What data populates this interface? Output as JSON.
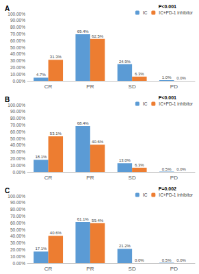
{
  "chart_data": [
    {
      "type": "bar",
      "title": "A",
      "annotations": [
        "P<0.001"
      ],
      "categories": [
        "CR",
        "PR",
        "SD",
        "PD"
      ],
      "series": [
        {
          "name": "IC",
          "color": "#5b9bd5",
          "values": [
            4.7,
            69.4,
            24.9,
            1.0
          ],
          "value_labels": [
            "4.7%",
            "69.4%",
            "24.9%",
            "1.0%"
          ]
        },
        {
          "name": "IC+PD-1 inhibitor",
          "color": "#ed7d31",
          "values": [
            31.3,
            62.5,
            6.3,
            0.0
          ],
          "value_labels": [
            "31.3%",
            "62.5%",
            "6.3%",
            "0.0%"
          ]
        }
      ],
      "ylim": [
        0,
        100
      ],
      "yticks": [
        {
          "value": 0,
          "label": "0.00%"
        },
        {
          "value": 10,
          "label": "10.00%"
        },
        {
          "value": 20,
          "label": "20.00%"
        },
        {
          "value": 30,
          "label": "30.00%"
        },
        {
          "value": 40,
          "label": "40.00%"
        },
        {
          "value": 50,
          "label": "50.00%"
        },
        {
          "value": 60,
          "label": "60.00%"
        },
        {
          "value": 70,
          "label": "70.00%"
        },
        {
          "value": 80,
          "label": "80.00%"
        },
        {
          "value": 90,
          "label": "90.00%"
        },
        {
          "value": 100,
          "label": "100.00%"
        }
      ],
      "grid": false,
      "legend": "upper right",
      "data_labels": true
    },
    {
      "type": "bar",
      "title": "B",
      "annotations": [
        "P<0.001"
      ],
      "categories": [
        "CR",
        "PR",
        "SD",
        "PD"
      ],
      "series": [
        {
          "name": "IC",
          "color": "#5b9bd5",
          "values": [
            18.1,
            68.4,
            13.0,
            0.5
          ],
          "value_labels": [
            "18.1%",
            "68.4%",
            "13.0%",
            "0.5%"
          ]
        },
        {
          "name": "IC+PD-1 inhibitor",
          "color": "#ed7d31",
          "values": [
            53.1,
            40.6,
            6.3,
            0.0
          ],
          "value_labels": [
            "53.1%",
            "40.6%",
            "6.3%",
            "0.0%"
          ]
        }
      ],
      "ylim": [
        0,
        100
      ],
      "yticks": [
        {
          "value": 0,
          "label": "0.00%"
        },
        {
          "value": 10,
          "label": "10.00%"
        },
        {
          "value": 20,
          "label": "20.00%"
        },
        {
          "value": 30,
          "label": "30.00%"
        },
        {
          "value": 40,
          "label": "40.00%"
        },
        {
          "value": 50,
          "label": "50.00%"
        },
        {
          "value": 60,
          "label": "60.00%"
        },
        {
          "value": 70,
          "label": "70.00%"
        },
        {
          "value": 80,
          "label": "80.00%"
        },
        {
          "value": 90,
          "label": "90.00%"
        },
        {
          "value": 100,
          "label": "100.00%"
        }
      ],
      "grid": false,
      "data_labels": true
    },
    {
      "type": "bar",
      "title": "C",
      "annotations": [
        "P=0.002"
      ],
      "categories": [
        "CR",
        "PR",
        "SD",
        "PD"
      ],
      "series": [
        {
          "name": "IC",
          "color": "#5b9bd5",
          "values": [
            17.1,
            61.1,
            21.2,
            0.5
          ],
          "value_labels": [
            "17.1%",
            "61.1%",
            "21.2%",
            "0.5%"
          ]
        },
        {
          "name": "IC+PD-1 inhibitor",
          "color": "#ed7d31",
          "values": [
            40.6,
            59.4,
            0.0,
            0.0
          ],
          "value_labels": [
            "40.6%",
            "59.4%",
            "0.0%",
            "0.0%"
          ]
        }
      ],
      "ylim": [
        0,
        100
      ],
      "yticks": [
        {
          "value": 0,
          "label": "0.00%"
        },
        {
          "value": 10,
          "label": "10.00%"
        },
        {
          "value": 20,
          "label": "20.00%"
        },
        {
          "value": 30,
          "label": "30.00%"
        },
        {
          "value": 40,
          "label": "40.00%"
        },
        {
          "value": 50,
          "label": "50.00%"
        },
        {
          "value": 60,
          "label": "60.00%"
        },
        {
          "value": 70,
          "label": "70.00%"
        },
        {
          "value": 80,
          "label": "80.00%"
        },
        {
          "value": 90,
          "label": "90.00%"
        },
        {
          "value": 100,
          "label": "100.00%"
        }
      ],
      "grid": false,
      "data_labels": true
    }
  ]
}
